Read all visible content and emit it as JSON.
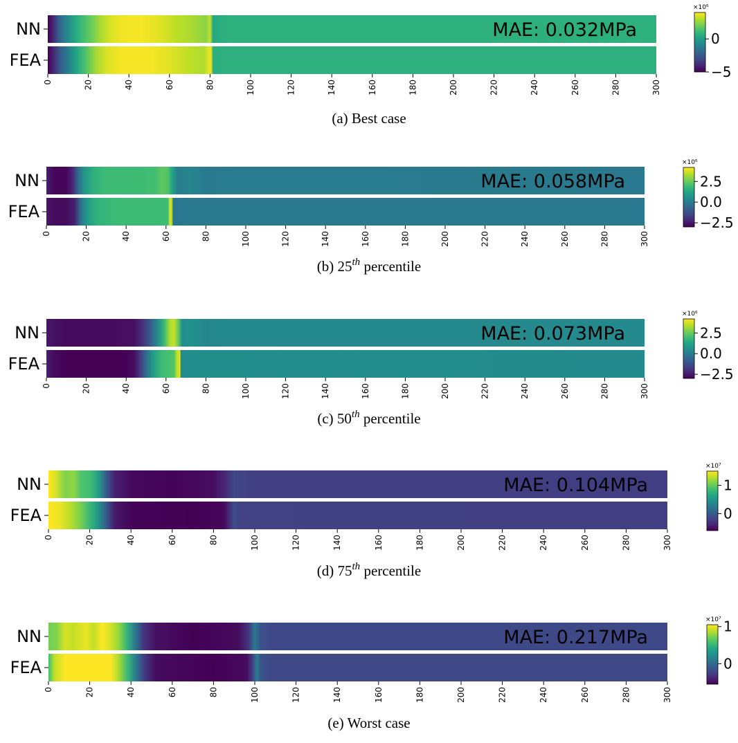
{
  "chart_data": [
    {
      "type": "heatmap",
      "caption": "(a) Best case",
      "rows": [
        "NN",
        "FEA"
      ],
      "x_ticks": [
        0,
        20,
        40,
        60,
        80,
        100,
        120,
        140,
        160,
        180,
        200,
        220,
        240,
        260,
        280,
        300
      ],
      "x_range": [
        0,
        300
      ],
      "annotation": "MAE: 0.032MPa",
      "colormap": "viridis",
      "colorbar": {
        "scale_label": "×10⁶",
        "vmin": -5,
        "vmax": 4,
        "ticks": [
          0,
          -5
        ],
        "tick_labels": [
          "0",
          "−5"
        ]
      },
      "profiles": {
        "NN": [
          [
            0,
            -5
          ],
          [
            2,
            -4.3
          ],
          [
            5,
            -2.5
          ],
          [
            9,
            -1
          ],
          [
            14,
            0.5
          ],
          [
            19,
            1.5
          ],
          [
            22,
            2
          ],
          [
            26,
            2.8
          ],
          [
            30,
            3.4
          ],
          [
            36,
            3.8
          ],
          [
            46,
            3.9
          ],
          [
            55,
            3.6
          ],
          [
            63,
            3.1
          ],
          [
            72,
            2.8
          ],
          [
            78,
            2.4
          ],
          [
            80,
            3.2
          ],
          [
            81.5,
            0.3
          ],
          [
            84,
            0.6
          ],
          [
            90,
            0.7
          ],
          [
            300,
            0.7
          ]
        ],
        "FEA": [
          [
            0,
            -5
          ],
          [
            2,
            -4.3
          ],
          [
            6,
            -2.5
          ],
          [
            10,
            -1.2
          ],
          [
            14,
            0.2
          ],
          [
            18,
            1.3
          ],
          [
            24,
            2.8
          ],
          [
            29,
            3.5
          ],
          [
            36,
            3.9
          ],
          [
            50,
            3.9
          ],
          [
            60,
            3.6
          ],
          [
            70,
            3.1
          ],
          [
            77,
            2.9
          ],
          [
            79,
            3.6
          ],
          [
            80.5,
            3.7
          ],
          [
            81.5,
            0.6
          ],
          [
            84,
            0.7
          ],
          [
            300,
            0.7
          ]
        ]
      }
    },
    {
      "type": "heatmap",
      "caption": "(b) 25th percentile",
      "caption_parts": {
        "prefix": "(b) 25",
        "sup": "th",
        "suffix": " percentile"
      },
      "rows": [
        "NN",
        "FEA"
      ],
      "x_ticks": [
        0,
        20,
        40,
        60,
        80,
        100,
        120,
        140,
        160,
        180,
        200,
        220,
        240,
        260,
        280,
        300
      ],
      "x_range": [
        0,
        300
      ],
      "annotation": "MAE: 0.058MPa",
      "colormap": "viridis",
      "colorbar": {
        "scale_label": "×10⁶",
        "vmin": -3,
        "vmax": 4.2,
        "ticks": [
          2.5,
          0.0,
          -2.5
        ],
        "tick_labels": [
          "2.5",
          "0.0",
          "−2.5"
        ]
      },
      "profiles": {
        "NN": [
          [
            0,
            -2.4
          ],
          [
            4,
            -2.9
          ],
          [
            10,
            -2.9
          ],
          [
            13,
            -2.3
          ],
          [
            16,
            -0.5
          ],
          [
            19,
            0.8
          ],
          [
            24,
            1.6
          ],
          [
            30,
            1.9
          ],
          [
            45,
            1.9
          ],
          [
            55,
            2.0
          ],
          [
            58,
            2.4
          ],
          [
            61,
            2.2
          ],
          [
            63,
            1.2
          ],
          [
            66,
            0.0
          ],
          [
            72,
            0.3
          ],
          [
            80,
            -0.1
          ],
          [
            90,
            0
          ],
          [
            300,
            -0.1
          ]
        ],
        "FEA": [
          [
            0,
            -2.6
          ],
          [
            4,
            -2.8
          ],
          [
            10,
            -2.8
          ],
          [
            14,
            -2.4
          ],
          [
            17,
            -0.5
          ],
          [
            20,
            0.8
          ],
          [
            25,
            1.6
          ],
          [
            35,
            1.9
          ],
          [
            58,
            1.9
          ],
          [
            61,
            2.0
          ],
          [
            62,
            3.9
          ],
          [
            63,
            3.3
          ],
          [
            63.5,
            -0.2
          ],
          [
            70,
            -0.1
          ],
          [
            300,
            -0.1
          ]
        ]
      }
    },
    {
      "type": "heatmap",
      "caption": "(c) 50th percentile",
      "caption_parts": {
        "prefix": "(c) 50",
        "sup": "th",
        "suffix": " percentile"
      },
      "rows": [
        "NN",
        "FEA"
      ],
      "x_ticks": [
        0,
        20,
        40,
        60,
        80,
        100,
        120,
        140,
        160,
        180,
        200,
        220,
        240,
        260,
        280,
        300
      ],
      "x_range": [
        0,
        300
      ],
      "annotation": "MAE: 0.073MPa",
      "colormap": "viridis",
      "colorbar": {
        "scale_label": "×10⁶",
        "vmin": -3,
        "vmax": 4.2,
        "ticks": [
          2.5,
          0.0,
          -2.5
        ],
        "tick_labels": [
          "2.5",
          "0.0",
          "−2.5"
        ]
      },
      "profiles": {
        "NN": [
          [
            0,
            -2.5
          ],
          [
            4,
            -2.7
          ],
          [
            10,
            -2.8
          ],
          [
            30,
            -2.8
          ],
          [
            44,
            -2.7
          ],
          [
            48,
            -2.0
          ],
          [
            52,
            -1.0
          ],
          [
            56,
            0.5
          ],
          [
            59,
            1.8
          ],
          [
            62,
            3.3
          ],
          [
            64,
            3.6
          ],
          [
            66,
            2.6
          ],
          [
            68,
            0.5
          ],
          [
            72,
            0.6
          ],
          [
            80,
            0.3
          ],
          [
            90,
            0.4
          ],
          [
            300,
            0.4
          ]
        ],
        "FEA": [
          [
            0,
            -2.4
          ],
          [
            4,
            -2.8
          ],
          [
            10,
            -3.0
          ],
          [
            40,
            -3.0
          ],
          [
            44,
            -2.7
          ],
          [
            47,
            -1.8
          ],
          [
            50,
            -0.5
          ],
          [
            53,
            0.8
          ],
          [
            58,
            1.9
          ],
          [
            64,
            2.2
          ],
          [
            65.5,
            3.5
          ],
          [
            67,
            3.9
          ],
          [
            67.5,
            0.4
          ],
          [
            72,
            0.5
          ],
          [
            300,
            0.4
          ]
        ]
      }
    },
    {
      "type": "heatmap",
      "caption": "(d) 75th percentile",
      "caption_parts": {
        "prefix": "(d) 75",
        "sup": "th",
        "suffix": " percentile"
      },
      "rows": [
        "NN",
        "FEA"
      ],
      "x_ticks": [
        0,
        20,
        40,
        60,
        80,
        100,
        120,
        140,
        160,
        180,
        200,
        220,
        240,
        260,
        280,
        300
      ],
      "x_range": [
        0,
        300
      ],
      "annotation": "MAE: 0.104MPa",
      "colormap": "viridis",
      "colorbar": {
        "scale_label": "×10⁷",
        "vmin": -0.6,
        "vmax": 1.5,
        "ticks": [
          1,
          0
        ],
        "tick_labels": [
          "1",
          "0"
        ]
      },
      "profiles": {
        "NN": [
          [
            0,
            1.5
          ],
          [
            3,
            1.4
          ],
          [
            8,
            1.1
          ],
          [
            12,
            1.15
          ],
          [
            16,
            0.9
          ],
          [
            20,
            0.85
          ],
          [
            24,
            0.6
          ],
          [
            28,
            0.0
          ],
          [
            32,
            -0.4
          ],
          [
            40,
            -0.55
          ],
          [
            60,
            -0.58
          ],
          [
            80,
            -0.52
          ],
          [
            86,
            -0.35
          ],
          [
            90,
            -0.15
          ],
          [
            95,
            -0.2
          ],
          [
            105,
            -0.22
          ],
          [
            300,
            -0.22
          ]
        ],
        "FEA": [
          [
            0,
            1.5
          ],
          [
            5,
            1.45
          ],
          [
            10,
            1.3
          ],
          [
            15,
            1.1
          ],
          [
            20,
            0.8
          ],
          [
            24,
            0.5
          ],
          [
            28,
            0.0
          ],
          [
            32,
            -0.45
          ],
          [
            40,
            -0.58
          ],
          [
            70,
            -0.6
          ],
          [
            85,
            -0.56
          ],
          [
            88,
            -0.3
          ],
          [
            90,
            -0.1
          ],
          [
            92,
            -0.2
          ],
          [
            300,
            -0.22
          ]
        ]
      }
    },
    {
      "type": "heatmap",
      "caption": "(e) Worst case",
      "rows": [
        "NN",
        "FEA"
      ],
      "x_ticks": [
        0,
        20,
        40,
        60,
        80,
        100,
        120,
        140,
        160,
        180,
        200,
        220,
        240,
        260,
        280,
        300
      ],
      "x_range": [
        0,
        300
      ],
      "annotation": "MAE: 0.217MPa",
      "colormap": "viridis",
      "colorbar": {
        "scale_label": "×10⁷",
        "vmin": -0.55,
        "vmax": 1.05,
        "ticks": [
          1,
          0
        ],
        "tick_labels": [
          "1",
          "0"
        ]
      },
      "profiles": {
        "NN": [
          [
            0,
            0.7
          ],
          [
            4,
            0.75
          ],
          [
            8,
            0.95
          ],
          [
            12,
            0.9
          ],
          [
            18,
            1.0
          ],
          [
            22,
            0.9
          ],
          [
            26,
            1.05
          ],
          [
            30,
            0.95
          ],
          [
            34,
            0.8
          ],
          [
            38,
            0.5
          ],
          [
            42,
            0.1
          ],
          [
            46,
            -0.3
          ],
          [
            52,
            -0.48
          ],
          [
            70,
            -0.55
          ],
          [
            92,
            -0.5
          ],
          [
            97,
            -0.3
          ],
          [
            100,
            0.1
          ],
          [
            103,
            -0.15
          ],
          [
            108,
            -0.2
          ],
          [
            300,
            -0.2
          ]
        ],
        "FEA": [
          [
            0,
            0.55
          ],
          [
            3,
            0.9
          ],
          [
            8,
            1.05
          ],
          [
            30,
            1.05
          ],
          [
            34,
            0.85
          ],
          [
            38,
            0.55
          ],
          [
            42,
            0.15
          ],
          [
            46,
            -0.25
          ],
          [
            52,
            -0.5
          ],
          [
            80,
            -0.55
          ],
          [
            96,
            -0.5
          ],
          [
            99,
            -0.25
          ],
          [
            101,
            0.15
          ],
          [
            103,
            -0.15
          ],
          [
            108,
            -0.2
          ],
          [
            300,
            -0.2
          ]
        ]
      }
    }
  ]
}
